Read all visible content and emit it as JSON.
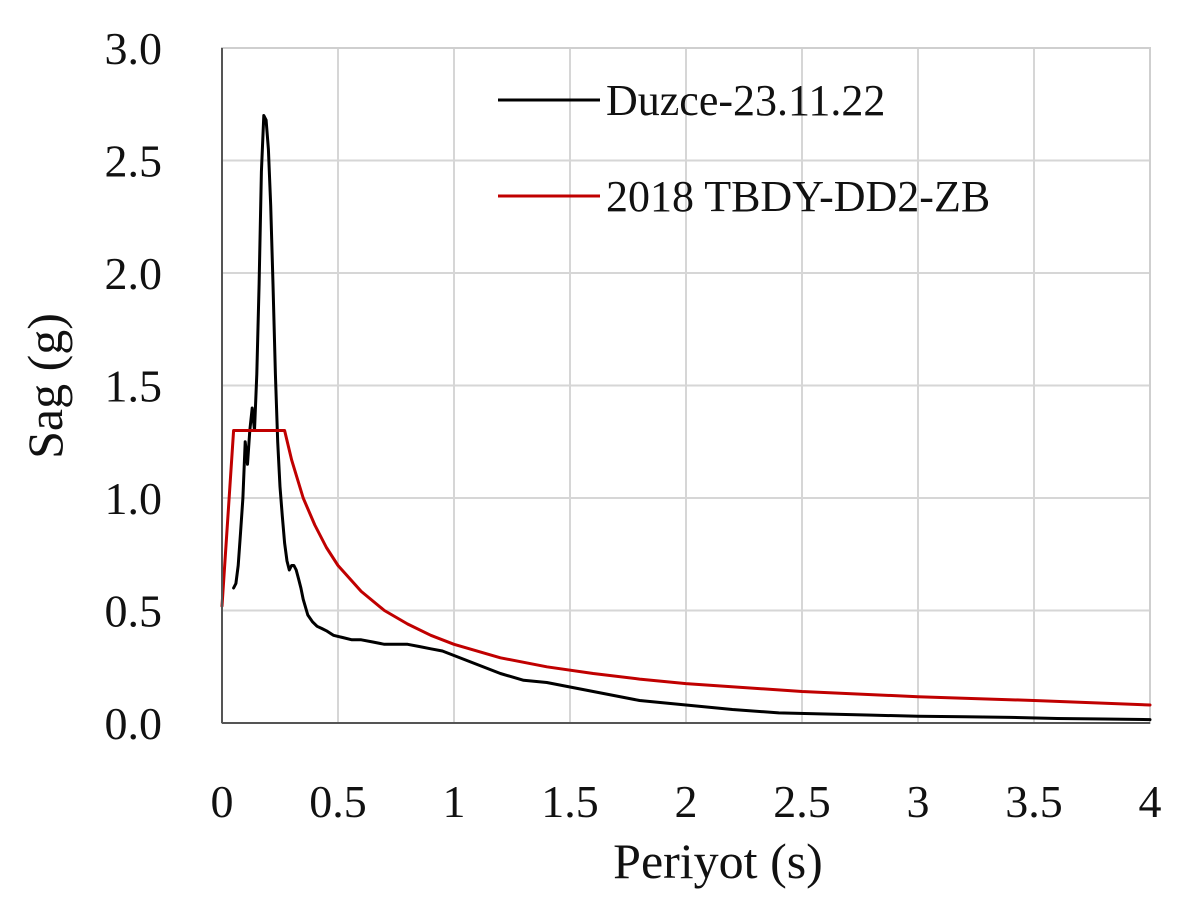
{
  "chart_data": {
    "type": "line",
    "xlabel": "Periyot (s)",
    "ylabel": "Sag (g)",
    "xlim": [
      0,
      4
    ],
    "ylim": [
      0,
      3.0
    ],
    "x_ticks": [
      "0",
      "0.5",
      "1",
      "1.5",
      "2",
      "2.5",
      "3",
      "3.5",
      "4"
    ],
    "y_ticks": [
      "0.0",
      "0.5",
      "1.0",
      "1.5",
      "2.0",
      "2.5",
      "3.0"
    ],
    "grid": true,
    "legend_position": "top-right",
    "series": [
      {
        "name": "Duzce-23.11.22",
        "color": "#000000",
        "x": [
          0.05,
          0.06,
          0.07,
          0.08,
          0.09,
          0.1,
          0.11,
          0.12,
          0.13,
          0.14,
          0.15,
          0.16,
          0.17,
          0.18,
          0.19,
          0.2,
          0.21,
          0.22,
          0.23,
          0.24,
          0.25,
          0.26,
          0.27,
          0.28,
          0.29,
          0.3,
          0.31,
          0.32,
          0.33,
          0.34,
          0.35,
          0.37,
          0.39,
          0.41,
          0.43,
          0.45,
          0.48,
          0.52,
          0.56,
          0.6,
          0.65,
          0.7,
          0.75,
          0.8,
          0.85,
          0.9,
          0.95,
          1.0,
          1.1,
          1.2,
          1.3,
          1.4,
          1.5,
          1.6,
          1.7,
          1.8,
          1.9,
          2.0,
          2.2,
          2.4,
          2.6,
          2.8,
          3.0,
          3.2,
          3.4,
          3.6,
          3.8,
          4.0
        ],
        "y": [
          0.6,
          0.62,
          0.7,
          0.85,
          1.0,
          1.25,
          1.15,
          1.3,
          1.4,
          1.3,
          1.55,
          1.95,
          2.45,
          2.7,
          2.68,
          2.55,
          2.3,
          1.95,
          1.55,
          1.25,
          1.05,
          0.92,
          0.8,
          0.72,
          0.68,
          0.7,
          0.7,
          0.68,
          0.64,
          0.6,
          0.55,
          0.48,
          0.45,
          0.43,
          0.42,
          0.41,
          0.39,
          0.38,
          0.37,
          0.37,
          0.36,
          0.35,
          0.35,
          0.35,
          0.34,
          0.33,
          0.32,
          0.3,
          0.26,
          0.22,
          0.19,
          0.18,
          0.16,
          0.14,
          0.12,
          0.1,
          0.09,
          0.08,
          0.06,
          0.045,
          0.04,
          0.035,
          0.03,
          0.028,
          0.025,
          0.02,
          0.018,
          0.015
        ]
      },
      {
        "name": "2018 TBDY-DD2-ZB",
        "color": "#c00000",
        "x": [
          0.0,
          0.05,
          0.27,
          0.3,
          0.35,
          0.4,
          0.45,
          0.5,
          0.6,
          0.7,
          0.8,
          0.9,
          1.0,
          1.2,
          1.4,
          1.6,
          1.8,
          2.0,
          2.5,
          3.0,
          3.5,
          4.0
        ],
        "y": [
          0.52,
          1.3,
          1.3,
          1.17,
          1.0,
          0.88,
          0.78,
          0.7,
          0.585,
          0.5,
          0.44,
          0.39,
          0.35,
          0.29,
          0.25,
          0.22,
          0.195,
          0.175,
          0.14,
          0.117,
          0.1,
          0.08
        ]
      }
    ]
  }
}
